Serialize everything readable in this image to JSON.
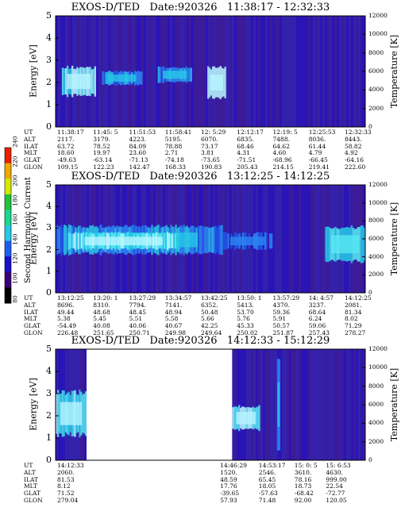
{
  "colorbar": {
    "label": "Second Harmonic Current",
    "ticks": [
      "80",
      "100",
      "120",
      "140",
      "160",
      "180",
      "200",
      "220",
      "240"
    ],
    "colors": [
      "#000000",
      "#3a0078",
      "#1a10c8",
      "#1f5cf0",
      "#27c8e6",
      "#17d88c",
      "#22c23a",
      "#d6e800",
      "#f0a800",
      "#e82000"
    ]
  },
  "chart_data": [
    {
      "type": "heatmap",
      "title": "EXOS-D/TED   Date:920326   11:38:17 - 12:32:33",
      "ylabel": "Energy [eV]",
      "ylabel_right": "Temperature [K]",
      "ylim": [
        0,
        5
      ],
      "y_ticks": [
        "0",
        "1",
        "2",
        "3",
        "4",
        "5"
      ],
      "y2lim": [
        0,
        12000
      ],
      "y2_ticks": [
        "0",
        "2000",
        "4000",
        "6000",
        "8000",
        "10000",
        "12000"
      ],
      "gaps": [],
      "bright_regions": [
        {
          "x0": 0.02,
          "x1": 0.13,
          "e0": 1.2,
          "e1": 2.9,
          "level": 0.65
        },
        {
          "x0": 0.49,
          "x1": 0.55,
          "e0": 1.1,
          "e1": 2.9,
          "level": 0.8
        },
        {
          "x0": 0.15,
          "x1": 0.28,
          "e0": 1.8,
          "e1": 2.6,
          "level": 0.35
        },
        {
          "x0": 0.33,
          "x1": 0.44,
          "e0": 1.9,
          "e1": 2.8,
          "level": 0.3
        }
      ],
      "ephemeris": {
        "labels": [
          "UT",
          "ALT",
          "ILAT",
          "MLT",
          "GLAT",
          "GLON"
        ],
        "columns": [
          {
            "UT": "11:38:17",
            "ALT": "2117.",
            "ILAT": "63.72",
            "MLT": "18.60",
            "GLAT": "-49.63",
            "GLON": "109.15"
          },
          {
            "UT": "11:45: 5",
            "ALT": "3179.",
            "ILAT": "78.52",
            "MLT": "19.97",
            "GLAT": "-63.14",
            "GLON": "122.23"
          },
          {
            "UT": "11:51:53",
            "ALT": "4223.",
            "ILAT": "84.09",
            "MLT": "23.60",
            "GLAT": "-71.13",
            "GLON": "142.47"
          },
          {
            "UT": "11:58:41",
            "ALT": "5195.",
            "ILAT": "78.88",
            "MLT": "2.71",
            "GLAT": "-74.18",
            "GLON": "168.33"
          },
          {
            "UT": "12: 5:29",
            "ALT": "6070.",
            "ILAT": "73.17",
            "MLT": "3.81",
            "GLAT": "-73.65",
            "GLON": "190.83"
          },
          {
            "UT": "12:12:17",
            "ALT": "6835.",
            "ILAT": "68.46",
            "MLT": "4.31",
            "GLAT": "-71.51",
            "GLON": "205.43"
          },
          {
            "UT": "12:19: 5",
            "ALT": "7488.",
            "ILAT": "64.62",
            "MLT": "4.60",
            "GLAT": "-68.96",
            "GLON": "214.15"
          },
          {
            "UT": "12:25:53",
            "ALT": "8036.",
            "ILAT": "61.44",
            "MLT": "4.79",
            "GLAT": "-66.45",
            "GLON": "219.41"
          },
          {
            "UT": "12:32:33",
            "ALT": "8443.",
            "ILAT": "58.82",
            "MLT": "4.92",
            "GLAT": "-64.16",
            "GLON": "222.60"
          }
        ]
      }
    },
    {
      "type": "heatmap",
      "title": "EXOS-D/TED   Date:920326   13:12:25 - 14:12:25",
      "ylabel": "Energy [eV]",
      "ylabel_right": "Temperature [K]",
      "ylim": [
        0,
        5
      ],
      "y_ticks": [
        "0",
        "1",
        "2",
        "3",
        "4",
        "5"
      ],
      "y2lim": [
        0,
        12000
      ],
      "y2_ticks": [
        "0",
        "2000",
        "4000",
        "6000",
        "8000",
        "10000",
        "12000"
      ],
      "gaps": [],
      "bright_regions": [
        {
          "x0": 0.0,
          "x1": 0.54,
          "e0": 1.6,
          "e1": 3.3,
          "level": 0.35
        },
        {
          "x0": 0.04,
          "x1": 0.4,
          "e0": 1.9,
          "e1": 2.9,
          "level": 0.6
        },
        {
          "x0": 0.54,
          "x1": 0.7,
          "e0": 1.9,
          "e1": 2.9,
          "level": 0.2
        },
        {
          "x0": 0.87,
          "x1": 1.0,
          "e0": 1.2,
          "e1": 3.3,
          "level": 0.55
        }
      ],
      "ephemeris": {
        "labels": [
          "UT",
          "ALT",
          "ILAT",
          "MLT",
          "GLAT",
          "GLON"
        ],
        "columns": [
          {
            "UT": "13:12:25",
            "ALT": "8696.",
            "ILAT": "49.44",
            "MLT": "5.38",
            "GLAT": "-54.49",
            "GLON": "226.48"
          },
          {
            "UT": "13:20: 1",
            "ALT": "8310.",
            "ILAT": "48.68",
            "MLT": "5.45",
            "GLAT": "40.08",
            "GLON": "251.65"
          },
          {
            "UT": "13:27:29",
            "ALT": "7794.",
            "ILAT": "48.45",
            "MLT": "5.51",
            "GLAT": "40.06",
            "GLON": "250.71"
          },
          {
            "UT": "13:34:57",
            "ALT": "7141.",
            "ILAT": "48.94",
            "MLT": "5.58",
            "GLAT": "40.67",
            "GLON": "249.98"
          },
          {
            "UT": "13:42:25",
            "ALT": "6352.",
            "ILAT": "50.48",
            "MLT": "5.66",
            "GLAT": "42.25",
            "GLON": "249.64"
          },
          {
            "UT": "13:50: 1",
            "ALT": "5413.",
            "ILAT": "53.70",
            "MLT": "5.76",
            "GLAT": "45.33",
            "GLON": "250.02"
          },
          {
            "UT": "13:57:29",
            "ALT": "4370.",
            "ILAT": "59.36",
            "MLT": "5.91",
            "GLAT": "50.57",
            "GLON": "251.87"
          },
          {
            "UT": "14: 4:57",
            "ALT": "3237.",
            "ILAT": "68.64",
            "MLT": "6.24",
            "GLAT": "59.06",
            "GLON": "257.43"
          },
          {
            "UT": "14:12:25",
            "ALT": "2081.",
            "ILAT": "81.34",
            "MLT": "8.02",
            "GLAT": "71.29",
            "GLON": "278.27"
          }
        ]
      }
    },
    {
      "type": "heatmap",
      "title": "EXOS-D/TED   Date:920326   14:12:33 - 15:12:29",
      "ylabel": "Energy [eV]",
      "ylabel_right": "Temperature [K]",
      "ylim": [
        0,
        5
      ],
      "y_ticks": [
        "0",
        "1",
        "2",
        "3",
        "4",
        "5"
      ],
      "y2lim": [
        0,
        12000
      ],
      "y2_ticks": [
        "0",
        "2000",
        "4000",
        "6000",
        "8000",
        "10000",
        "12000"
      ],
      "gaps": [
        [
          0.1,
          0.57
        ]
      ],
      "bright_regions": [
        {
          "x0": 0.0,
          "x1": 0.1,
          "e0": 0.8,
          "e1": 3.4,
          "level": 0.6
        },
        {
          "x0": 0.57,
          "x1": 0.66,
          "e0": 1.2,
          "e1": 2.6,
          "level": 0.7
        },
        {
          "x0": 0.715,
          "x1": 0.725,
          "e0": 0.0,
          "e1": 5.0,
          "level": 0.35
        }
      ],
      "ephemeris": {
        "labels": [
          "UT",
          "ALT",
          "ILAT",
          "MLT",
          "GLAT",
          "GLON"
        ],
        "columns": [
          {
            "UT": "14:12:33",
            "ALT": "2060.",
            "ILAT": "81.53",
            "MLT": "8.12",
            "GLAT": "71.52",
            "GLON": "279.04"
          },
          {
            "UT": "14:46:29",
            "ALT": "1520.",
            "ILAT": "48.59",
            "MLT": "17.76",
            "GLAT": "-39.65",
            "GLON": "57.93"
          },
          {
            "UT": "14:53:17",
            "ALT": "2546.",
            "ILAT": "65.45",
            "MLT": "18.05",
            "GLAT": "-57.63",
            "GLON": "71.48"
          },
          {
            "UT": "15: 0: 5",
            "ALT": "3610.",
            "ILAT": "78.16",
            "MLT": "18.73",
            "GLAT": "-68.42",
            "GLON": "92.00"
          },
          {
            "UT": "15: 6:53",
            "ALT": "4630.",
            "ILAT": "999.00",
            "MLT": "22.54",
            "GLAT": "-72.77",
            "GLON": "120.05"
          }
        ]
      }
    }
  ]
}
